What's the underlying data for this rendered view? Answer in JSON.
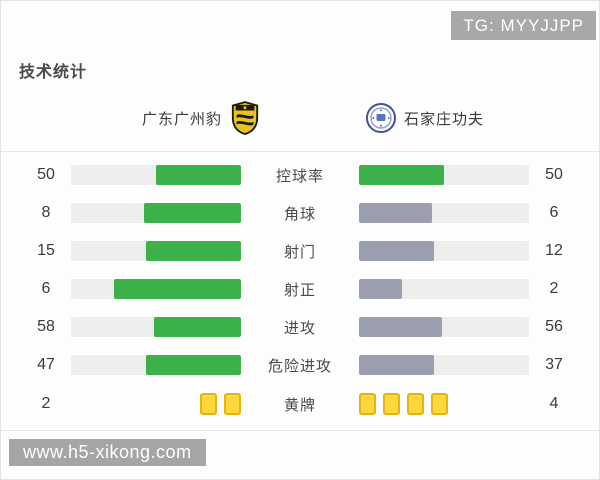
{
  "section_title": "技术统计",
  "watermarks": {
    "top_right": "TG: MYYJJPP",
    "bottom_left": "www.h5-xikong.com"
  },
  "teams": {
    "home": {
      "name": "广东广州豹",
      "logo": "yellow-black-shield-crest"
    },
    "away": {
      "name": "石家庄功夫",
      "logo": "blue-white-round-badge"
    }
  },
  "colors": {
    "home_fill": "#3cb14a",
    "away_fill": "#9b9eae",
    "away_fill_highlight": "#3cb14a",
    "track": "#ededed",
    "card_fill": "#ffd83d",
    "card_border": "#e9b30c"
  },
  "chart_data": {
    "type": "bar",
    "orientation": "horizontal-paired",
    "title": "技术统计",
    "legend_position": "top",
    "series": [
      {
        "name": "广东广州豹",
        "values": [
          50,
          8,
          15,
          6,
          58,
          47,
          2
        ]
      },
      {
        "name": "石家庄功夫",
        "values": [
          50,
          6,
          12,
          2,
          56,
          37,
          4
        ]
      }
    ],
    "rows": [
      {
        "label": "控球率",
        "home": 50,
        "away": 50,
        "display": "bar",
        "away_style": "highlight"
      },
      {
        "label": "角球",
        "home": 8,
        "away": 6,
        "display": "bar",
        "away_style": "default"
      },
      {
        "label": "射门",
        "home": 15,
        "away": 12,
        "display": "bar",
        "away_style": "default"
      },
      {
        "label": "射正",
        "home": 6,
        "away": 2,
        "display": "bar",
        "away_style": "default"
      },
      {
        "label": "进攻",
        "home": 58,
        "away": 56,
        "display": "bar",
        "away_style": "default"
      },
      {
        "label": "危险进攻",
        "home": 47,
        "away": 37,
        "display": "bar",
        "away_style": "default"
      },
      {
        "label": "黄牌",
        "home": 2,
        "away": 4,
        "display": "cards"
      }
    ]
  }
}
